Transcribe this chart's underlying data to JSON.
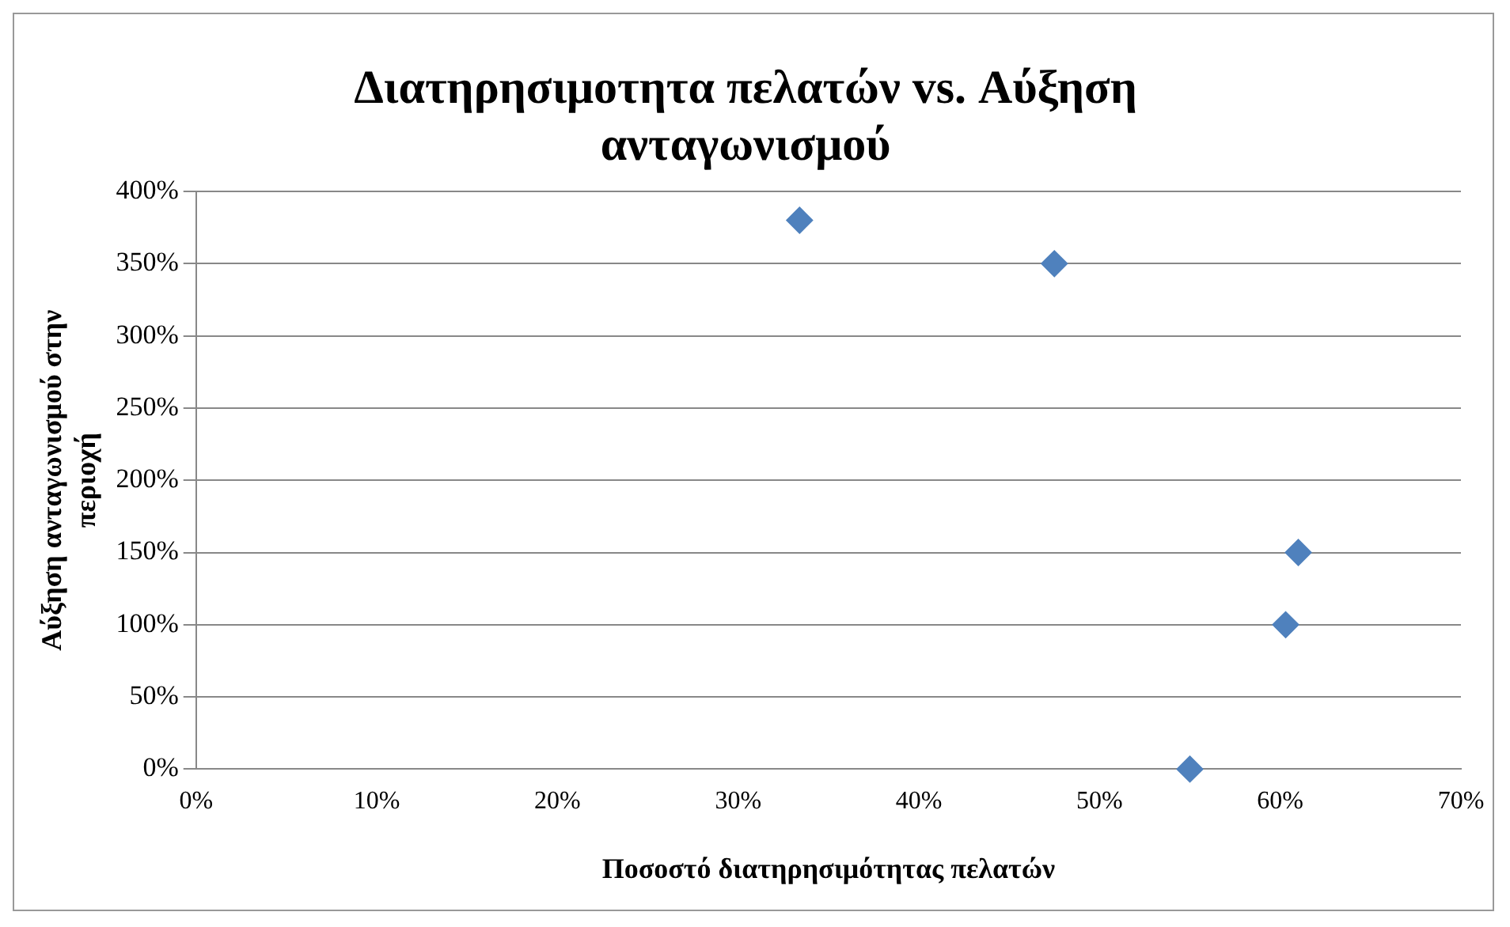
{
  "chart_data": {
    "type": "scatter",
    "title": "Διατηρησιμοτητα πελατών vs. Αύξηση ανταγωνισμού",
    "xlabel": "Ποσοστό διατηρησιμότητας πελατών",
    "ylabel": "Αύξηση ανταγωνισμού στην περιοχή",
    "series": [
      {
        "color": "#4f81bd",
        "x": [
          33.4,
          47.5,
          61,
          60.3,
          55
        ],
        "values": [
          380,
          350,
          150,
          100,
          0
        ]
      }
    ],
    "xlim": [
      0,
      70
    ],
    "xticks": [
      {
        "value": 0,
        "label": "0%"
      },
      {
        "value": 10,
        "label": "10%"
      },
      {
        "value": 20,
        "label": "20%"
      },
      {
        "value": 30,
        "label": "30%"
      },
      {
        "value": 40,
        "label": "40%"
      },
      {
        "value": 50,
        "label": "50%"
      },
      {
        "value": 60,
        "label": "60%"
      },
      {
        "value": 70,
        "label": "70%"
      }
    ],
    "ylim": [
      0,
      400
    ],
    "yticks": [
      {
        "value": 0,
        "label": "0%"
      },
      {
        "value": 50,
        "label": "50%"
      },
      {
        "value": 100,
        "label": "100%"
      },
      {
        "value": 150,
        "label": "150%"
      },
      {
        "value": 200,
        "label": "200%"
      },
      {
        "value": 250,
        "label": "250%"
      },
      {
        "value": 300,
        "label": "300%"
      },
      {
        "value": 350,
        "label": "350%"
      },
      {
        "value": 400,
        "label": "400%"
      }
    ],
    "grid": "y",
    "legend": false,
    "marker": "diamond"
  }
}
